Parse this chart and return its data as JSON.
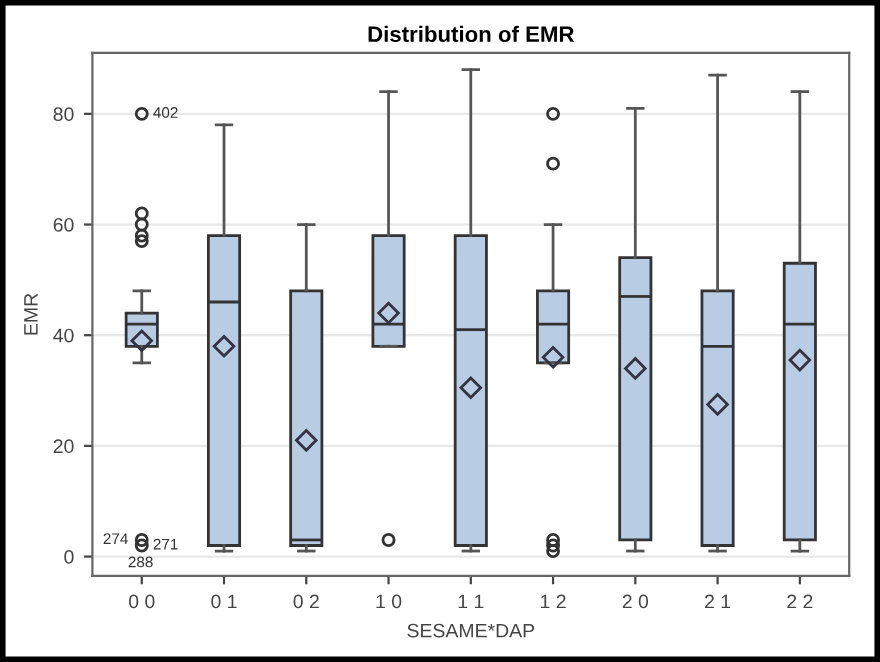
{
  "chart_data": {
    "type": "box",
    "title": "Distribution of EMR",
    "xlabel": "SESAME*DAP",
    "ylabel": "EMR",
    "categories": [
      "0 0",
      "0 1",
      "0 2",
      "1 0",
      "1 1",
      "1 2",
      "2 0",
      "2 1",
      "2 2"
    ],
    "boxes": [
      {
        "low": 35,
        "q1": 38,
        "median": 42,
        "q3": 44,
        "high": 48,
        "mean": 39,
        "outliers": [
          80,
          62,
          60,
          58,
          57,
          3,
          2
        ]
      },
      {
        "low": 1,
        "q1": 2,
        "median": 46,
        "q3": 58,
        "high": 78,
        "mean": 38
      },
      {
        "low": 1,
        "q1": 2,
        "median": 3,
        "q3": 48,
        "high": 60,
        "mean": 21
      },
      {
        "low": 38,
        "q1": 38,
        "median": 42,
        "q3": 58,
        "high": 84,
        "mean": 44,
        "outliers": [
          3
        ]
      },
      {
        "low": 1,
        "q1": 2,
        "median": 41,
        "q3": 58,
        "high": 88,
        "mean": 30.5
      },
      {
        "low": 35,
        "q1": 35,
        "median": 42,
        "q3": 48,
        "high": 60,
        "mean": 36,
        "outliers": [
          80,
          71,
          3,
          2,
          1
        ]
      },
      {
        "low": 1,
        "q1": 3,
        "median": 47,
        "q3": 54,
        "high": 81,
        "mean": 34
      },
      {
        "low": 1,
        "q1": 2,
        "median": 38,
        "q3": 48,
        "high": 87,
        "mean": 27.5
      },
      {
        "low": 1,
        "q1": 3,
        "median": 42,
        "q3": 53,
        "high": 84,
        "mean": 35.5
      }
    ],
    "color": "#b8cce4",
    "ylim": [
      -3.5,
      91
    ],
    "yticks": [
      0,
      20,
      40,
      60,
      80
    ],
    "grid": "y",
    "annotations": [
      "402",
      "274",
      "271",
      "288"
    ]
  }
}
